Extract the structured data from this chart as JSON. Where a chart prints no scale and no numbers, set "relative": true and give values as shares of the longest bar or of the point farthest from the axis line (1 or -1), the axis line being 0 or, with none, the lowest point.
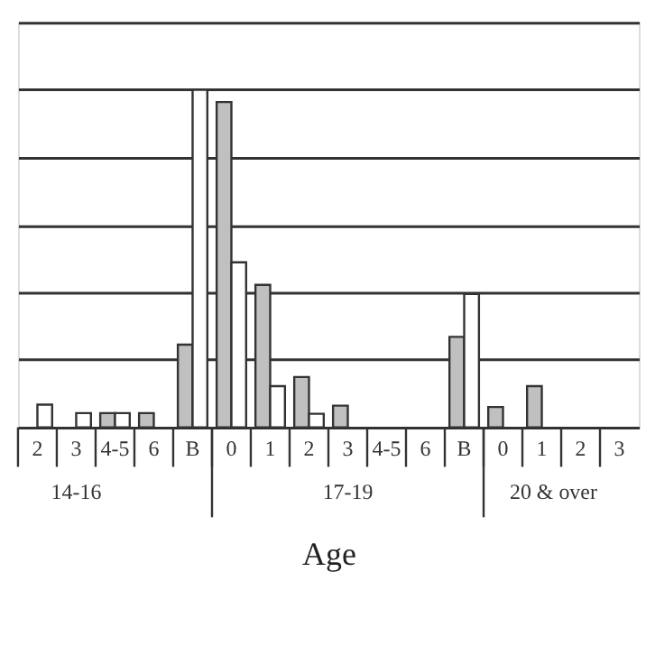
{
  "chart_data": {
    "type": "bar",
    "relative": true,
    "xlabel": "Age",
    "grid": "y",
    "categories": [
      "2",
      "3",
      "4-5",
      "6",
      "B",
      "0",
      "1",
      "2",
      "3",
      "4-5",
      "6",
      "B",
      "0",
      "1",
      "2",
      "3"
    ],
    "series": [
      {
        "color": "#c0c0c0",
        "values": [
          null,
          0,
          0.042,
          0.042,
          0.245,
          0.964,
          0.422,
          0.149,
          0.064,
          0,
          0,
          0.268,
          0.06,
          0.122,
          0,
          0
        ]
      },
      {
        "color": "#ffffff",
        "values": [
          0.067,
          0.042,
          0.042,
          0,
          1,
          0.489,
          0.122,
          0.04,
          0,
          0,
          0,
          0.395,
          0,
          0,
          0,
          0
        ]
      }
    ],
    "annotations": [
      "14-16",
      "17-19",
      "20 & over"
    ]
  }
}
